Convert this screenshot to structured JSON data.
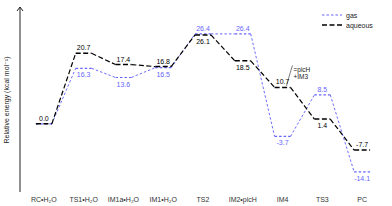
{
  "chart_data": {
    "type": "line",
    "ylabel": "Relative energy (kcal mol⁻¹)",
    "categories": [
      "RC•H₂O",
      "TS1•H₂O",
      "IM1a•H₂O",
      "IM1•H₂O",
      "TS2",
      "IM2•picH",
      "IM4",
      "TS3",
      "PC"
    ],
    "series": [
      {
        "name": "gas",
        "color": "#6666ff",
        "line_style": "dotted",
        "values": [
          0.0,
          16.3,
          13.6,
          16.5,
          26.4,
          26.4,
          -3.7,
          8.5,
          -14.1
        ],
        "value_labels": [
          null,
          "16.3",
          "13.6",
          "16.5",
          "26.4",
          "26.4",
          "-3.7",
          "8.5",
          "-14.1"
        ]
      },
      {
        "name": "aqueous",
        "color": "#000000",
        "line_style": "dashed",
        "values": [
          0.0,
          20.7,
          17.4,
          16.8,
          26.1,
          18.5,
          10.7,
          1.4,
          -7.7
        ],
        "value_labels": [
          "0.0",
          "20.7",
          "17.4",
          "16.8",
          "26.1",
          "18.5",
          "10.7",
          "1.4",
          "-7.7"
        ]
      }
    ],
    "ylim": [
      -20,
      34
    ],
    "tick_labels": "x",
    "data_labels": true,
    "legend": "upper right",
    "annotations": [
      {
        "text": "=picH\n+IM3",
        "series": "aqueous",
        "category": "IM4"
      }
    ]
  }
}
